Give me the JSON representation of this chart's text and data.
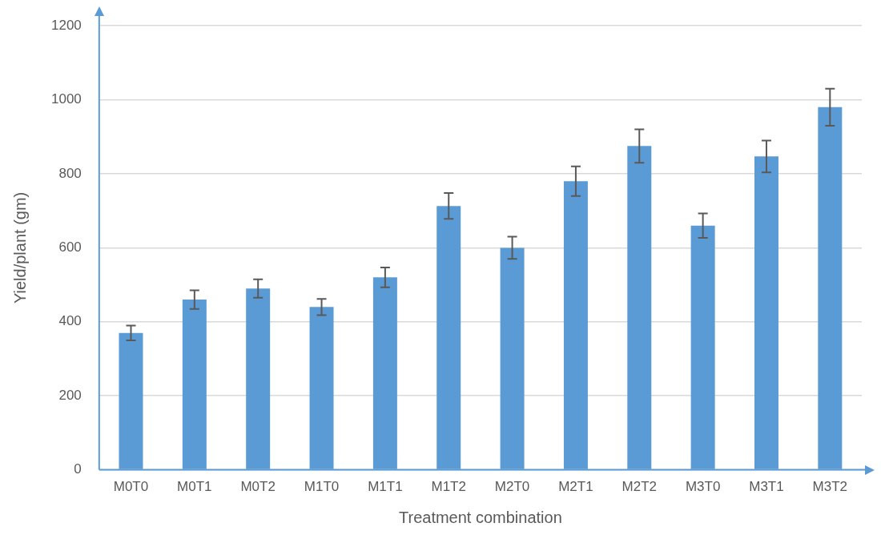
{
  "chart_data": {
    "type": "bar",
    "xlabel": "Treatment combination",
    "ylabel": "Yield/plant (gm)",
    "categories": [
      "M0T0",
      "M0T1",
      "M0T2",
      "M1T0",
      "M1T1",
      "M1T2",
      "M2T0",
      "M2T1",
      "M2T2",
      "M3T0",
      "M3T1",
      "M3T2"
    ],
    "values": [
      370,
      460,
      490,
      440,
      520,
      713,
      600,
      780,
      875,
      660,
      847,
      980
    ],
    "errors": [
      20,
      25,
      25,
      22,
      27,
      35,
      30,
      40,
      45,
      33,
      43,
      50
    ],
    "color": "#5b9bd5",
    "ylim": [
      0,
      1200
    ],
    "yticks": [
      0,
      200,
      400,
      600,
      800,
      1000,
      1200
    ],
    "grid": "y",
    "legend": false
  }
}
